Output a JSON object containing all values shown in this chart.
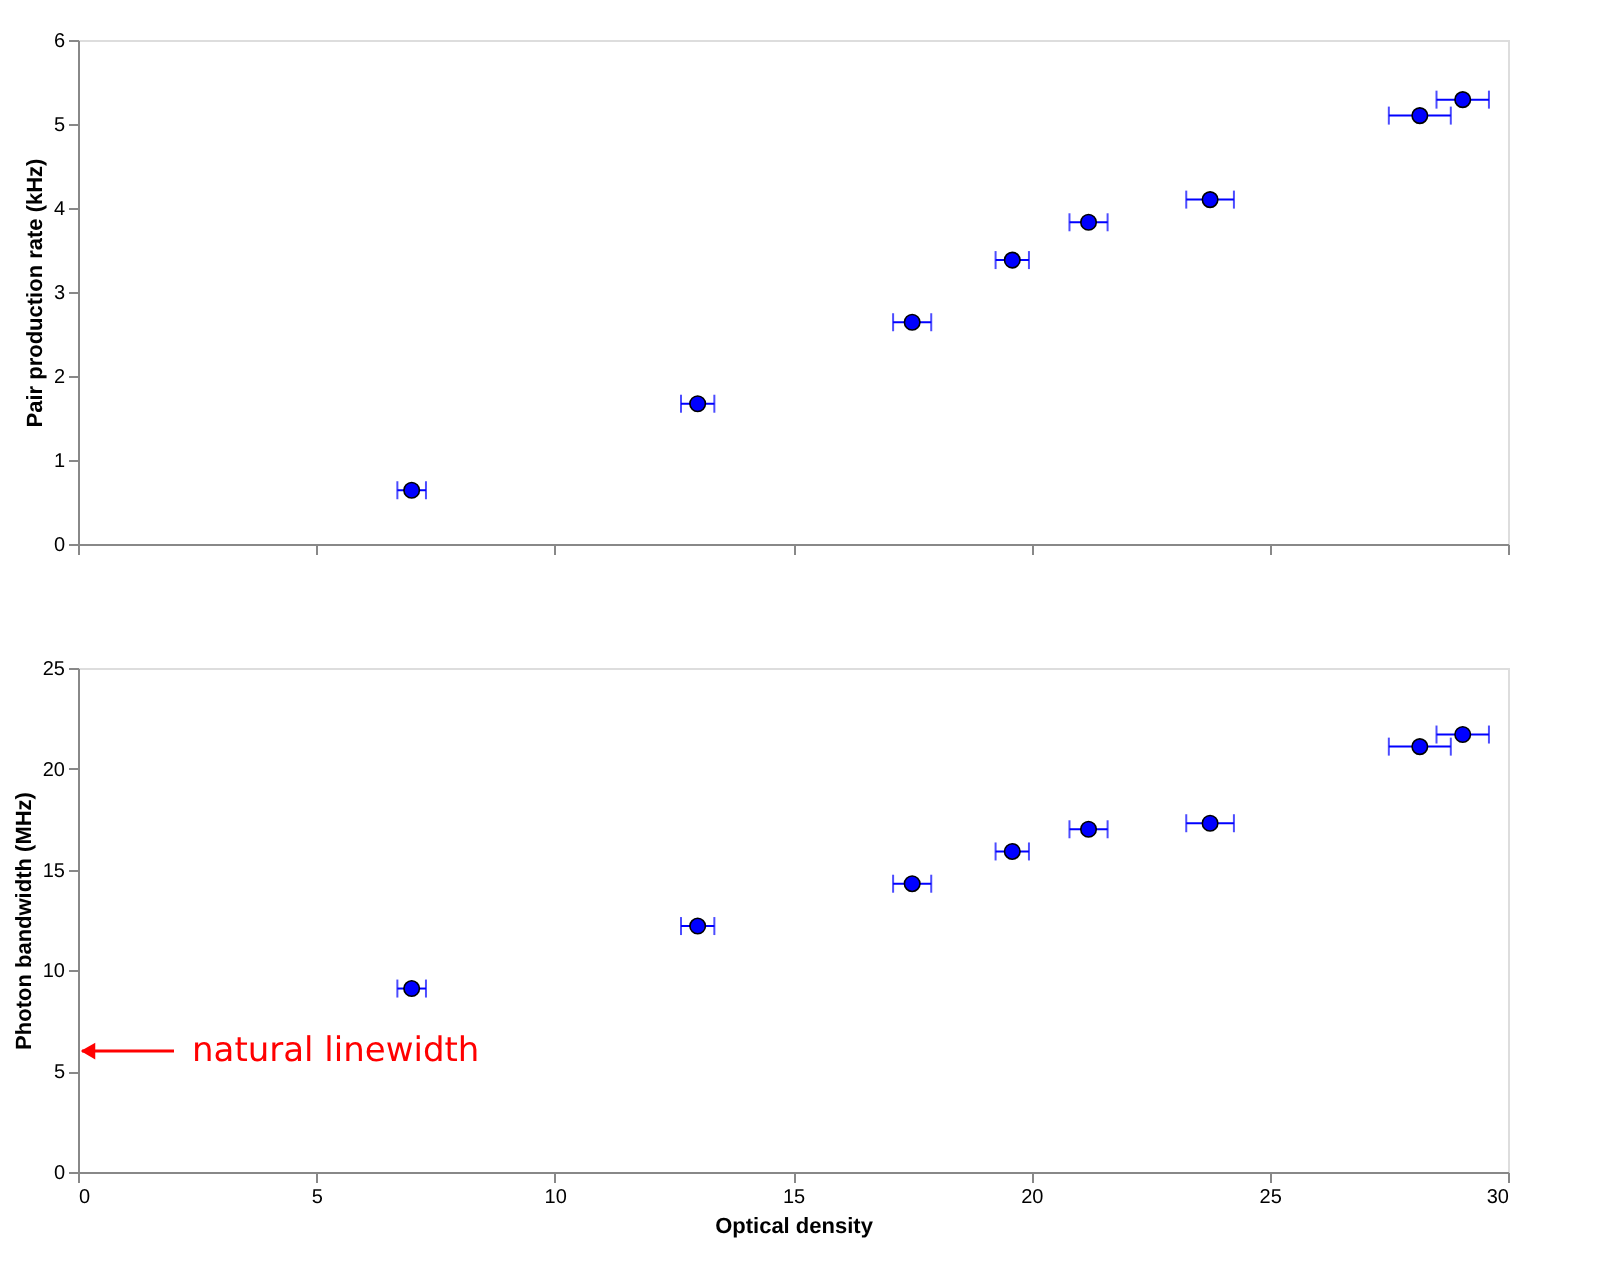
{
  "chart_data": [
    {
      "type": "scatter",
      "ylabel": "Pair production rate (kHz)",
      "x": [
        7.0,
        13.0,
        17.5,
        19.6,
        21.2,
        23.75,
        28.15,
        29.05
      ],
      "series": [
        {
          "color": "#0000ff",
          "values": [
            0.64,
            1.67,
            2.64,
            3.38,
            3.83,
            4.1,
            5.1,
            5.29
          ],
          "xerrors": [
            0.3,
            0.35,
            0.4,
            0.35,
            0.4,
            0.5,
            0.65,
            0.55
          ]
        }
      ],
      "xlim": [
        0,
        30
      ],
      "xticks": [
        0,
        5,
        10,
        15,
        20,
        25,
        30
      ],
      "ylim": [
        0,
        6
      ],
      "yticks": [
        0,
        1,
        2,
        3,
        4,
        5,
        6
      ],
      "tick_labels": "y",
      "marker": "circle",
      "grid": false
    },
    {
      "type": "scatter",
      "xlabel": "Optical density",
      "ylabel": "Photon bandwidth (MHz)",
      "x": [
        7.0,
        13.0,
        17.5,
        19.6,
        21.2,
        23.75,
        28.15,
        29.05
      ],
      "series": [
        {
          "color": "#0000ff",
          "values": [
            9.1,
            12.2,
            14.3,
            15.9,
            17.0,
            17.3,
            21.1,
            21.7
          ],
          "xerrors": [
            0.3,
            0.35,
            0.4,
            0.35,
            0.4,
            0.5,
            0.65,
            0.55
          ]
        }
      ],
      "xlim": [
        0,
        30
      ],
      "xticks": [
        0,
        5,
        10,
        15,
        20,
        25,
        30
      ],
      "ylim": [
        0,
        25
      ],
      "yticks": [
        0,
        5,
        10,
        15,
        20,
        25
      ],
      "annotations": [
        "natural linewidth"
      ],
      "marker": "circle",
      "grid": false
    }
  ]
}
